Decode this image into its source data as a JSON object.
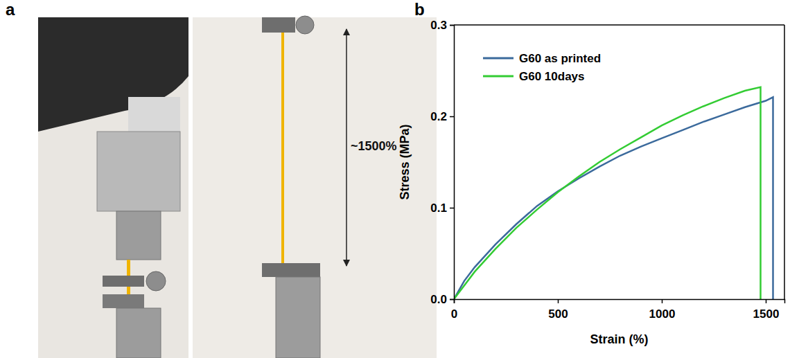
{
  "figure": {
    "panel_labels": [
      "a",
      "b"
    ]
  },
  "photo": {
    "annotation": "~1500%"
  },
  "chart_data": {
    "type": "line",
    "xlabel": "Strain (%)",
    "ylabel": "Stress (MPa)",
    "xlim": [
      0,
      1590
    ],
    "ylim": [
      0,
      0.3
    ],
    "xticks": [
      0,
      500,
      1000,
      1500
    ],
    "yticks": [
      {
        "value": 0,
        "label": "0.0"
      },
      0.1,
      0.2,
      0.3
    ],
    "grid": false,
    "legend": "upper left",
    "series": [
      {
        "name": "G60 as printed",
        "color": "#3b6a9c",
        "x": [
          0,
          50,
          100,
          200,
          300,
          400,
          500,
          600,
          700,
          800,
          900,
          1000,
          1100,
          1200,
          1300,
          1400,
          1500,
          1535,
          1535
        ],
        "values": [
          0,
          0.02,
          0.035,
          0.06,
          0.082,
          0.102,
          0.118,
          0.132,
          0.145,
          0.157,
          0.167,
          0.176,
          0.185,
          0.194,
          0.202,
          0.21,
          0.217,
          0.221,
          0
        ]
      },
      {
        "name": "G60 10days",
        "color": "#33cc33",
        "x": [
          0,
          50,
          100,
          200,
          300,
          400,
          500,
          600,
          700,
          800,
          900,
          1000,
          1100,
          1200,
          1300,
          1400,
          1475,
          1475
        ],
        "values": [
          0,
          0.015,
          0.03,
          0.055,
          0.078,
          0.098,
          0.117,
          0.134,
          0.15,
          0.164,
          0.177,
          0.19,
          0.201,
          0.211,
          0.22,
          0.228,
          0.232,
          0
        ]
      }
    ]
  }
}
